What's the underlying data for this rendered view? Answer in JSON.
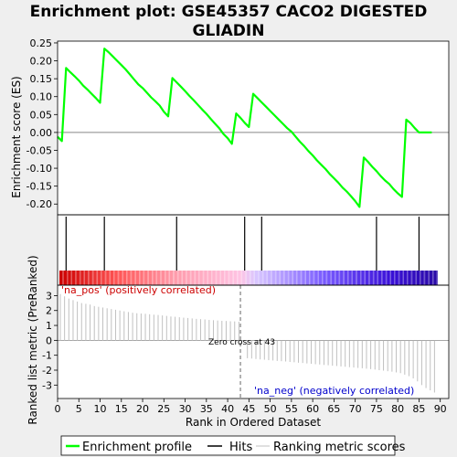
{
  "title_line1": "Enrichment plot: GSE45357 CACO2 DIGESTED",
  "title_line2": "GLIADIN",
  "chart_data": [
    {
      "type": "line",
      "panel": "enrichment",
      "ylabel": "Enrichment score (ES)",
      "ylim": [
        -0.23,
        0.255
      ],
      "xlim": [
        0,
        92
      ],
      "yticks": [
        0.25,
        0.2,
        0.15,
        0.1,
        0.05,
        0.0,
        -0.05,
        -0.1,
        -0.15,
        -0.2
      ],
      "ytick_labels": [
        "0.25",
        "0.20",
        "0.15",
        "0.10",
        "0.05",
        "0.00",
        "-0.05",
        "-0.10",
        "-0.15",
        "-0.20"
      ],
      "series": [
        {
          "name": "Enrichment profile",
          "color": "#00ff00",
          "x": [
            0,
            1,
            2,
            3,
            4,
            5,
            6,
            7,
            8,
            9,
            10,
            11,
            12,
            13,
            14,
            15,
            16,
            17,
            18,
            19,
            20,
            21,
            22,
            23,
            24,
            25,
            26,
            27,
            28,
            29,
            30,
            31,
            32,
            33,
            34,
            35,
            36,
            37,
            38,
            39,
            40,
            41,
            42,
            43,
            44,
            45,
            46,
            47,
            48,
            49,
            50,
            51,
            52,
            53,
            54,
            55,
            56,
            57,
            58,
            59,
            60,
            61,
            62,
            63,
            64,
            65,
            66,
            67,
            68,
            69,
            70,
            71,
            72,
            73,
            74,
            75,
            76,
            77,
            78,
            79,
            80,
            81,
            82,
            83,
            84,
            85,
            86,
            87,
            88
          ],
          "y": [
            -0.012,
            -0.024,
            0.18,
            0.168,
            0.157,
            0.145,
            0.131,
            0.12,
            0.108,
            0.096,
            0.083,
            0.234,
            0.224,
            0.212,
            0.2,
            0.188,
            0.176,
            0.162,
            0.148,
            0.134,
            0.124,
            0.111,
            0.098,
            0.087,
            0.075,
            0.058,
            0.045,
            0.152,
            0.14,
            0.128,
            0.115,
            0.102,
            0.09,
            0.077,
            0.064,
            0.052,
            0.038,
            0.025,
            0.012,
            -0.004,
            -0.016,
            -0.032,
            0.053,
            0.041,
            0.027,
            0.015,
            0.108,
            0.096,
            0.084,
            0.072,
            0.06,
            0.048,
            0.036,
            0.024,
            0.012,
            0.002,
            -0.012,
            -0.026,
            -0.038,
            -0.052,
            -0.064,
            -0.078,
            -0.09,
            -0.102,
            -0.116,
            -0.128,
            -0.14,
            -0.154,
            -0.165,
            -0.178,
            -0.192,
            -0.208,
            -0.07,
            -0.082,
            -0.096,
            -0.108,
            -0.122,
            -0.134,
            -0.144,
            -0.158,
            -0.17,
            -0.18,
            0.036,
            0.026,
            0.012,
            0.0,
            0.0,
            0.0,
            0.0
          ]
        }
      ],
      "baseline": 0.0
    },
    {
      "type": "hits",
      "panel": "hits",
      "series": [
        {
          "name": "Hits",
          "color": "#000000",
          "positions": [
            2,
            11,
            28,
            44,
            48,
            75,
            85
          ]
        }
      ]
    },
    {
      "type": "heatmap",
      "panel": "ranking-colorbar",
      "n_bins": 89,
      "gradient_stops": [
        {
          "at": 0.0,
          "color": "#cc0000"
        },
        {
          "at": 0.15,
          "color": "#ff5555"
        },
        {
          "at": 0.3,
          "color": "#ff9aaa"
        },
        {
          "at": 0.48,
          "color": "#ffc4e4"
        },
        {
          "at": 0.52,
          "color": "#d9c7ff"
        },
        {
          "at": 0.7,
          "color": "#7a5cff"
        },
        {
          "at": 0.88,
          "color": "#3a10d8"
        },
        {
          "at": 1.0,
          "color": "#2a0aa8"
        }
      ]
    },
    {
      "type": "bar",
      "panel": "ranking-metric",
      "xlabel": "Rank in Ordered Dataset",
      "ylabel": "Ranked list metric (PreRanked)",
      "ylim": [
        -3.9,
        3.7
      ],
      "yticks": [
        3,
        2,
        1,
        0,
        -1,
        -2,
        -3
      ],
      "ytick_labels": [
        "3",
        "2",
        "1",
        "0",
        "-1",
        "-2",
        "-3"
      ],
      "xticks": [
        0,
        5,
        10,
        15,
        20,
        25,
        30,
        35,
        40,
        45,
        50,
        55,
        60,
        65,
        70,
        75,
        80,
        85,
        90
      ],
      "xtick_labels": [
        "0",
        "5",
        "10",
        "15",
        "20",
        "25",
        "30",
        "35",
        "40",
        "45",
        "50",
        "55",
        "60",
        "65",
        "70",
        "75",
        "80",
        "85",
        "90"
      ],
      "series": [
        {
          "name": "Ranking metric scores",
          "color": "#c0c0c0",
          "values": [
            3.1,
            2.95,
            2.8,
            2.7,
            2.6,
            2.5,
            2.45,
            2.4,
            2.3,
            2.25,
            2.2,
            2.15,
            2.1,
            2.05,
            2.0,
            1.95,
            1.9,
            1.85,
            1.82,
            1.8,
            1.78,
            1.75,
            1.72,
            1.7,
            1.67,
            1.64,
            1.6,
            1.58,
            1.55,
            1.52,
            1.5,
            1.47,
            1.44,
            1.42,
            1.4,
            1.37,
            1.35,
            1.33,
            1.31,
            1.3,
            1.28,
            1.27,
            1.25,
            0.0,
            -1.2,
            -1.22,
            -1.25,
            -1.28,
            -1.3,
            -1.33,
            -1.35,
            -1.38,
            -1.4,
            -1.42,
            -1.45,
            -1.47,
            -1.5,
            -1.52,
            -1.55,
            -1.57,
            -1.6,
            -1.62,
            -1.65,
            -1.67,
            -1.7,
            -1.72,
            -1.75,
            -1.77,
            -1.8,
            -1.82,
            -1.85,
            -1.87,
            -1.9,
            -1.93,
            -1.96,
            -2.0,
            -2.03,
            -2.07,
            -2.1,
            -2.15,
            -2.2,
            -2.3,
            -2.4,
            -2.55,
            -2.75,
            -3.0,
            -3.2,
            -3.35,
            -3.5
          ]
        }
      ],
      "zero_cross_rank": 43,
      "annotations": {
        "zero_cross": "Zero cross at 43",
        "pos_label": "'na_pos' (positively correlated)",
        "neg_label": "'na_neg' (negatively correlated)",
        "pos_color": "#cc0000",
        "neg_color": "#0000cc"
      }
    }
  ],
  "legend": {
    "items": [
      {
        "label": "Enrichment profile",
        "color": "#00ff00",
        "style": "line-thick"
      },
      {
        "label": "Hits",
        "color": "#000000",
        "style": "line"
      },
      {
        "label": "Ranking metric scores",
        "color": "#c0c0c0",
        "style": "line-thin"
      }
    ]
  }
}
